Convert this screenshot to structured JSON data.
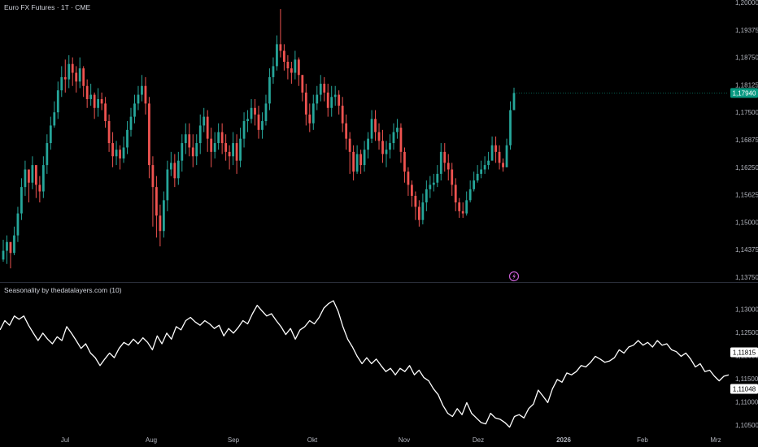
{
  "header": {
    "title": "Euro FX Futures · 1T · CME"
  },
  "indicator": {
    "title": "Seasonality by thedatalayers.com (10)"
  },
  "colors": {
    "up": "#26a69a",
    "down": "#ef5350",
    "line": "#ffffff",
    "event_icon": "#c85fd3"
  },
  "price_badge": {
    "value": "1,17940",
    "color": "#089981"
  },
  "indicator_badges": [
    {
      "value": "1,11815"
    },
    {
      "value": "1,11048"
    }
  ],
  "chart_data": [
    {
      "type": "candlestick",
      "title": "Euro FX Futures · 1T · CME",
      "y_ticks": [
        "1,20000",
        "1,19375",
        "1,18750",
        "1,18125",
        "1,17500",
        "1,16875",
        "1,16250",
        "1,15625",
        "1,15000",
        "1,14375",
        "1,13750"
      ],
      "ylim": [
        1.1375,
        1.2
      ],
      "x_ticks": [
        "Jul",
        "Aug",
        "Sep",
        "Okt",
        "Nov",
        "Dez",
        "2026",
        "Feb",
        "Mrz"
      ],
      "last_price": 1.1794,
      "closes": [
        1.1435,
        1.1455,
        1.143,
        1.147,
        1.152,
        1.158,
        1.162,
        1.159,
        1.163,
        1.1585,
        1.157,
        1.163,
        1.168,
        1.172,
        1.175,
        1.18,
        1.183,
        1.1825,
        1.186,
        1.184,
        1.182,
        1.185,
        1.181,
        1.178,
        1.179,
        1.176,
        1.178,
        1.177,
        1.173,
        1.168,
        1.165,
        1.1665,
        1.1645,
        1.167,
        1.171,
        1.174,
        1.177,
        1.179,
        1.181,
        1.177,
        1.163,
        1.158,
        1.1515,
        1.148,
        1.155,
        1.162,
        1.1635,
        1.16,
        1.164,
        1.168,
        1.17,
        1.167,
        1.165,
        1.168,
        1.172,
        1.174,
        1.169,
        1.166,
        1.168,
        1.1705,
        1.168,
        1.166,
        1.165,
        1.168,
        1.164,
        1.169,
        1.173,
        1.1735,
        1.176,
        1.1745,
        1.171,
        1.173,
        1.177,
        1.183,
        1.1855,
        1.1905,
        1.189,
        1.1865,
        1.185,
        1.184,
        1.187,
        1.1835,
        1.1795,
        1.1745,
        1.1725,
        1.177,
        1.179,
        1.1815,
        1.1795,
        1.176,
        1.1785,
        1.179,
        1.1765,
        1.1725,
        1.169,
        1.166,
        1.1615,
        1.1655,
        1.163,
        1.1665,
        1.169,
        1.1735,
        1.1705,
        1.1685,
        1.1655,
        1.1665,
        1.168,
        1.1705,
        1.1715,
        1.166,
        1.1615,
        1.1585,
        1.156,
        1.1535,
        1.1505,
        1.1545,
        1.1575,
        1.1585,
        1.159,
        1.161,
        1.166,
        1.1635,
        1.162,
        1.1585,
        1.1545,
        1.1525,
        1.152,
        1.155,
        1.1575,
        1.1595,
        1.161,
        1.162,
        1.163,
        1.164,
        1.1675,
        1.166,
        1.1635,
        1.1625,
        1.1675,
        1.1755,
        1.1794
      ],
      "highs": [
        1.146,
        1.147,
        1.145,
        1.149,
        1.1535,
        1.16,
        1.164,
        1.162,
        1.165,
        1.1625,
        1.1605,
        1.165,
        1.17,
        1.174,
        1.1775,
        1.182,
        1.1855,
        1.187,
        1.188,
        1.1875,
        1.1855,
        1.1875,
        1.1855,
        1.1825,
        1.1815,
        1.1795,
        1.1805,
        1.1795,
        1.1785,
        1.1745,
        1.1705,
        1.1685,
        1.1675,
        1.1695,
        1.173,
        1.176,
        1.179,
        1.181,
        1.1835,
        1.183,
        1.1785,
        1.165,
        1.1605,
        1.154,
        1.157,
        1.164,
        1.166,
        1.1655,
        1.166,
        1.17,
        1.1725,
        1.1725,
        1.17,
        1.17,
        1.1745,
        1.176,
        1.1755,
        1.1715,
        1.1705,
        1.1725,
        1.1725,
        1.17,
        1.1675,
        1.1705,
        1.17,
        1.1715,
        1.175,
        1.1755,
        1.178,
        1.178,
        1.1765,
        1.175,
        1.179,
        1.185,
        1.1875,
        1.1925,
        1.1985,
        1.1905,
        1.188,
        1.1865,
        1.189,
        1.1875,
        1.1835,
        1.1815,
        1.177,
        1.179,
        1.181,
        1.1835,
        1.183,
        1.1815,
        1.181,
        1.181,
        1.18,
        1.1785,
        1.1745,
        1.1705,
        1.1675,
        1.1675,
        1.1665,
        1.1685,
        1.1705,
        1.1755,
        1.1755,
        1.1725,
        1.171,
        1.1685,
        1.17,
        1.1725,
        1.1735,
        1.1725,
        1.167,
        1.1625,
        1.1595,
        1.157,
        1.155,
        1.1565,
        1.1595,
        1.1605,
        1.161,
        1.163,
        1.168,
        1.168,
        1.1655,
        1.1635,
        1.16,
        1.1555,
        1.1545,
        1.157,
        1.1595,
        1.1615,
        1.163,
        1.164,
        1.165,
        1.166,
        1.1695,
        1.1695,
        1.1675,
        1.1645,
        1.169,
        1.1775,
        1.1806
      ],
      "lows": [
        1.141,
        1.1405,
        1.1395,
        1.1425,
        1.1455,
        1.1505,
        1.156,
        1.1545,
        1.1575,
        1.1555,
        1.1545,
        1.1555,
        1.161,
        1.1665,
        1.1715,
        1.1735,
        1.1785,
        1.1795,
        1.1805,
        1.181,
        1.1795,
        1.1805,
        1.1785,
        1.176,
        1.1765,
        1.1735,
        1.174,
        1.1755,
        1.1715,
        1.166,
        1.1625,
        1.163,
        1.162,
        1.1635,
        1.1655,
        1.1695,
        1.1725,
        1.1755,
        1.1775,
        1.1745,
        1.16,
        1.149,
        1.1465,
        1.1445,
        1.1465,
        1.1525,
        1.1605,
        1.158,
        1.1585,
        1.1615,
        1.1655,
        1.165,
        1.1625,
        1.163,
        1.1655,
        1.1705,
        1.166,
        1.1625,
        1.1645,
        1.1665,
        1.1655,
        1.164,
        1.162,
        1.163,
        1.161,
        1.1625,
        1.167,
        1.1705,
        1.1725,
        1.172,
        1.169,
        1.169,
        1.172,
        1.1755,
        1.1815,
        1.1845,
        1.1875,
        1.1845,
        1.1825,
        1.1815,
        1.1825,
        1.181,
        1.1775,
        1.172,
        1.1705,
        1.171,
        1.1755,
        1.1775,
        1.1775,
        1.174,
        1.174,
        1.1765,
        1.1745,
        1.1705,
        1.1665,
        1.161,
        1.1595,
        1.161,
        1.161,
        1.1615,
        1.1645,
        1.168,
        1.1685,
        1.1665,
        1.1635,
        1.1625,
        1.1645,
        1.1665,
        1.169,
        1.1635,
        1.159,
        1.156,
        1.1535,
        1.1505,
        1.149,
        1.1495,
        1.1525,
        1.1555,
        1.157,
        1.158,
        1.1595,
        1.1615,
        1.1595,
        1.156,
        1.1525,
        1.151,
        1.151,
        1.1515,
        1.1545,
        1.157,
        1.159,
        1.16,
        1.161,
        1.162,
        1.165,
        1.1635,
        1.162,
        1.1615,
        1.1625,
        1.1665,
        1.1788
      ]
    },
    {
      "type": "line",
      "title": "Seasonality by thedatalayers.com (10)",
      "y_ticks": [
        "1,13000",
        "1,12500",
        "1,12000",
        "1,11500",
        "1,11000",
        "1,10500"
      ],
      "ylim": [
        1.1025,
        1.1325
      ],
      "x_ticks": [
        "Jul",
        "Aug",
        "Sep",
        "Okt",
        "Nov",
        "Dez",
        "2026",
        "Feb",
        "Mrz"
      ],
      "values": [
        1.1255,
        1.1275,
        1.1265,
        1.1285,
        1.1278,
        1.1285,
        1.1265,
        1.1248,
        1.1232,
        1.1248,
        1.1235,
        1.1225,
        1.124,
        1.1232,
        1.1262,
        1.1248,
        1.1232,
        1.1215,
        1.1225,
        1.1205,
        1.1195,
        1.1178,
        1.1192,
        1.1205,
        1.1195,
        1.1215,
        1.1228,
        1.1222,
        1.1235,
        1.1225,
        1.1238,
        1.1228,
        1.1212,
        1.1242,
        1.1225,
        1.1248,
        1.1235,
        1.1262,
        1.1255,
        1.1275,
        1.1282,
        1.1272,
        1.1265,
        1.1275,
        1.1268,
        1.1258,
        1.1265,
        1.1242,
        1.1258,
        1.1248,
        1.126,
        1.1275,
        1.1268,
        1.129,
        1.1308,
        1.1296,
        1.1285,
        1.129,
        1.1275,
        1.1262,
        1.1245,
        1.1258,
        1.1235,
        1.1255,
        1.1262,
        1.1275,
        1.1268,
        1.1282,
        1.1302,
        1.1312,
        1.1318,
        1.1295,
        1.1262,
        1.1235,
        1.1218,
        1.1198,
        1.1182,
        1.1195,
        1.1182,
        1.1192,
        1.1178,
        1.1165,
        1.1172,
        1.1158,
        1.1172,
        1.1165,
        1.1178,
        1.1158,
        1.1168,
        1.1152,
        1.1145,
        1.1128,
        1.1115,
        1.1092,
        1.1075,
        1.1068,
        1.1085,
        1.1072,
        1.1098,
        1.1075,
        1.1065,
        1.1055,
        1.1052,
        1.1075,
        1.1065,
        1.1062,
        1.1055,
        1.1045,
        1.1068,
        1.1072,
        1.1065,
        1.1085,
        1.1095,
        1.1125,
        1.1112,
        1.1098,
        1.1128,
        1.1148,
        1.1142,
        1.1162,
        1.1158,
        1.1165,
        1.1178,
        1.1175,
        1.1185,
        1.1198,
        1.1192,
        1.1185,
        1.1188,
        1.1195,
        1.1212,
        1.1205,
        1.1218,
        1.1222,
        1.1232,
        1.1222,
        1.1228,
        1.1218,
        1.1232,
        1.1222,
        1.1225,
        1.1212,
        1.1208,
        1.1198,
        1.1205,
        1.1192,
        1.1175,
        1.1182,
        1.1165,
        1.1168,
        1.1155,
        1.1145,
        1.1155,
        1.1158
      ]
    }
  ]
}
